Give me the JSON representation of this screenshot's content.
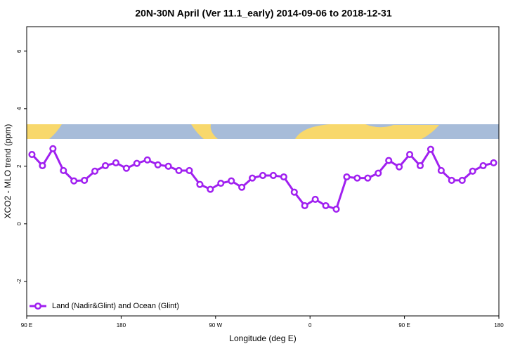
{
  "chart_data": {
    "type": "line",
    "title": "20N-30N April (Ver 11.1_early)   2014-09-06 to 2018-12-31",
    "x_label": "Longitude (deg E)",
    "y_label": "XCO2 - MLO trend (ppm)",
    "x": [
      95,
      105,
      115,
      125,
      135,
      145,
      155,
      165,
      175,
      185,
      195,
      205,
      215,
      225,
      235,
      245,
      255,
      265,
      275,
      285,
      295,
      305,
      315,
      325,
      335,
      345,
      355,
      365,
      375,
      385,
      395,
      405,
      415,
      425,
      435,
      445,
      455,
      465,
      475,
      485,
      495,
      505,
      515,
      525,
      535
    ],
    "series": [
      {
        "name": "Land (Nadir&Glint) and Ocean (Glint)",
        "color": "#a020f0",
        "values": [
          2.41,
          2.02,
          2.61,
          1.85,
          1.49,
          1.51,
          1.83,
          2.02,
          2.12,
          1.93,
          2.1,
          2.22,
          2.05,
          2.0,
          1.85,
          1.85,
          1.37,
          1.2,
          1.41,
          1.49,
          1.27,
          1.59,
          1.68,
          1.68,
          1.63,
          1.1,
          0.63,
          0.85,
          0.63,
          0.51,
          1.63,
          1.59,
          1.59,
          1.76,
          2.2,
          1.98,
          2.41,
          2.02,
          2.59,
          1.85,
          1.51,
          1.51,
          1.83,
          2.02,
          2.12
        ]
      }
    ],
    "xlim": [
      90,
      540
    ],
    "xticks": [
      {
        "value": 90,
        "label": "90 E"
      },
      {
        "value": 180,
        "label": "180"
      },
      {
        "value": 270,
        "label": "90 W"
      },
      {
        "value": 360,
        "label": "0"
      },
      {
        "value": 450,
        "label": "90 E"
      },
      {
        "value": 540,
        "label": "180"
      }
    ],
    "ylim": [
      -3.2,
      6.85
    ],
    "yticks": [
      -2,
      0,
      2,
      4,
      6
    ],
    "legend": "bottom-left"
  }
}
